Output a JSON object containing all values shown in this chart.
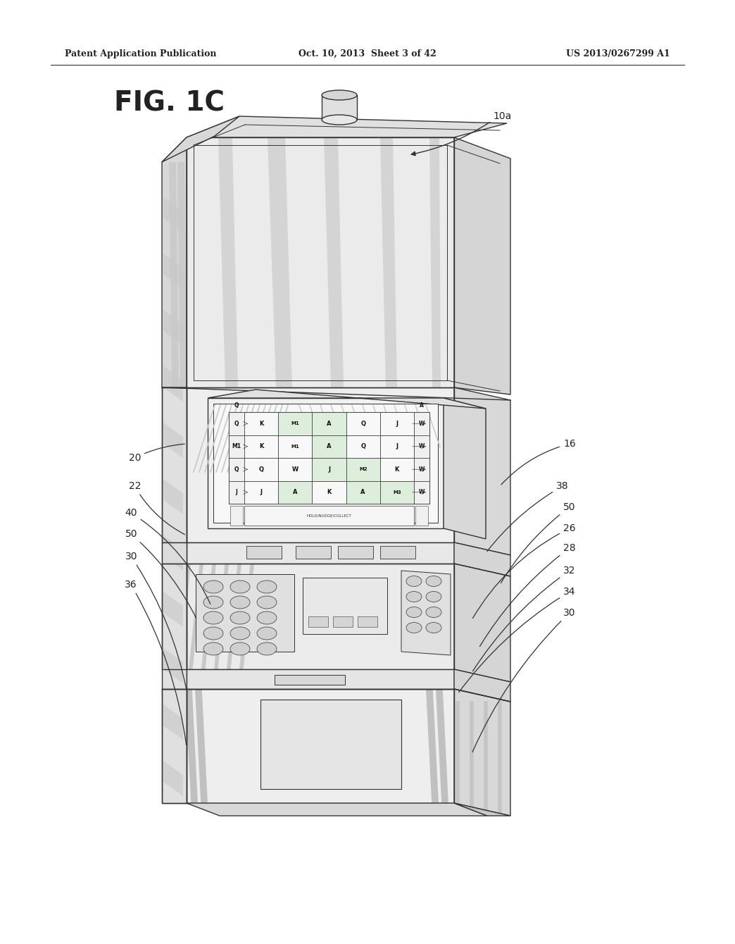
{
  "header_left": "Patent Application Publication",
  "header_center": "Oct. 10, 2013  Sheet 3 of 42",
  "header_right": "US 2013/0267299 A1",
  "title": "FIG. 1C",
  "ref_label": "10a",
  "bg_color": "#ffffff",
  "line_color": "#333333",
  "text_color": "#222222",
  "gray1": "#d0d0d0",
  "gray2": "#b8b8b8",
  "gray3": "#e8e8e8",
  "gray4": "#c0c0c0"
}
